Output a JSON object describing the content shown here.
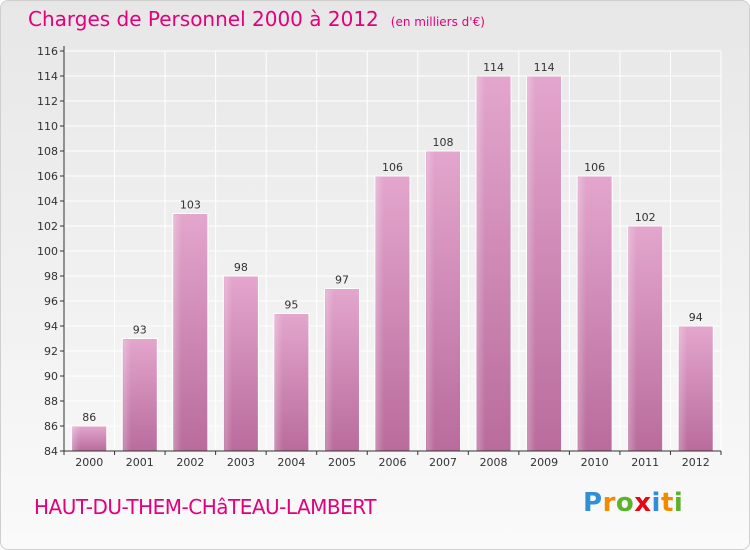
{
  "title": "Charges de Personnel 2000 à 2012",
  "subtitle": "(en milliers d'€)",
  "footer": "HAUT-DU-THEM-CHâTEAU-LAMBERT",
  "logo": {
    "letters": [
      "P",
      "r",
      "o",
      "x",
      "i",
      "t",
      "i"
    ],
    "colors": [
      "#2f8fd8",
      "#f08c00",
      "#5db22b",
      "#e30613",
      "#2f8fd8",
      "#f08c00",
      "#5db22b"
    ]
  },
  "colors": {
    "accent": "#e3007a",
    "bar": "#d68fba",
    "axis": "#333333",
    "grid": "#ffffff"
  },
  "chart_data": {
    "type": "bar",
    "categories": [
      "2000",
      "2001",
      "2002",
      "2003",
      "2004",
      "2005",
      "2006",
      "2007",
      "2008",
      "2009",
      "2010",
      "2011",
      "2012"
    ],
    "values": [
      86,
      93,
      103,
      98,
      95,
      97,
      106,
      108,
      114,
      114,
      106,
      102,
      94
    ],
    "data_labels": [
      "86",
      "93",
      "103",
      "98",
      "95",
      "97",
      "106",
      "108",
      "114",
      "114",
      "106",
      "102",
      "94"
    ],
    "yticks": [
      "84",
      "86",
      "88",
      "90",
      "92",
      "94",
      "96",
      "98",
      "100",
      "102",
      "104",
      "106",
      "108",
      "110",
      "112",
      "114",
      "116"
    ],
    "ylim": [
      84,
      116
    ],
    "grid": true,
    "legend": "none"
  }
}
